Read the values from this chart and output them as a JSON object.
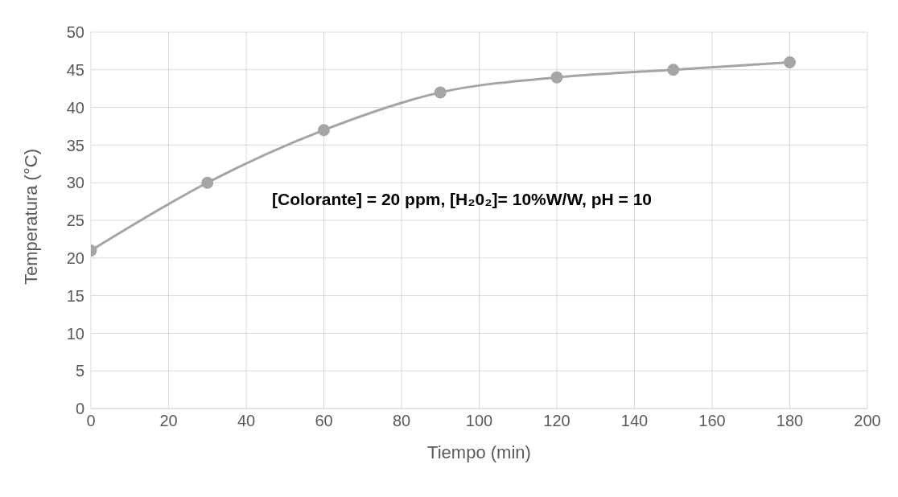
{
  "chart_data": {
    "type": "line",
    "xlabel": "Tiempo (min)",
    "ylabel": "Temperatura (°C)",
    "annotations": [
      "[Colorante] = 20 ppm,  [H₂0₂]= 10%W/W,  pH = 10"
    ],
    "x": [
      0,
      30,
      60,
      90,
      120,
      150,
      180
    ],
    "series": [
      {
        "color": "#a5a5a5",
        "values": [
          21,
          30,
          37,
          42,
          44,
          45,
          46
        ]
      }
    ],
    "xlim": [
      0,
      200
    ],
    "xticks": [
      0,
      20,
      40,
      60,
      80,
      100,
      120,
      140,
      160,
      180,
      200
    ],
    "ylim": [
      0,
      50
    ],
    "yticks": [
      0,
      5,
      10,
      15,
      20,
      25,
      30,
      35,
      40,
      45,
      50
    ],
    "grid": true,
    "marker": "circle",
    "line_style": "solid"
  }
}
